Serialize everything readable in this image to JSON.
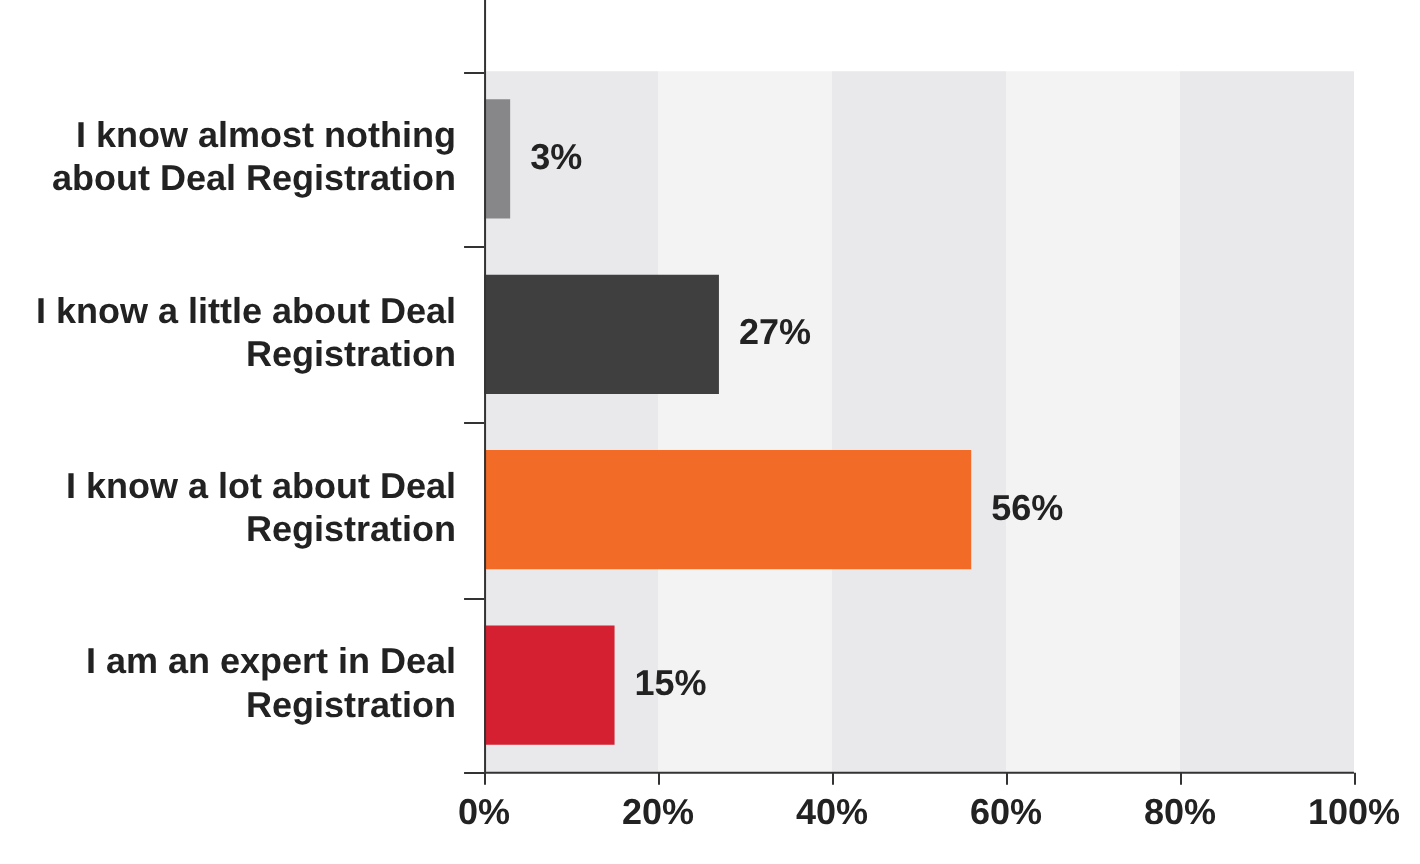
{
  "chart_data": {
    "type": "bar",
    "orientation": "horizontal",
    "categories": [
      "I know almost nothing about Deal Registration",
      "I know a little about Deal Registration",
      "I know a lot about Deal Registration",
      "I am an expert in Deal Registration"
    ],
    "values": [
      3,
      27,
      56,
      15
    ],
    "colors": [
      "#87878a",
      "#3f3f3f",
      "#f26b27",
      "#d42030"
    ],
    "value_labels": [
      "3%",
      "27%",
      "56%",
      "15%"
    ],
    "xlim": [
      0,
      100
    ],
    "xticks": [
      {
        "value": 0,
        "label": "0%"
      },
      {
        "value": 20,
        "label": "20%"
      },
      {
        "value": 40,
        "label": "40%"
      },
      {
        "value": 60,
        "label": "60%"
      },
      {
        "value": 80,
        "label": "80%"
      },
      {
        "value": 100,
        "label": "100%"
      }
    ],
    "bands": [
      {
        "axis": "x",
        "from": 0,
        "to": 20,
        "color": "#e9e9eb"
      },
      {
        "axis": "x",
        "from": 20,
        "to": 40,
        "color": "#f3f3f4"
      },
      {
        "axis": "x",
        "from": 40,
        "to": 60,
        "color": "#e9e9eb"
      },
      {
        "axis": "x",
        "from": 60,
        "to": 80,
        "color": "#f3f3f4"
      },
      {
        "axis": "x",
        "from": 80,
        "to": 100,
        "color": "#e9e9eb"
      }
    ],
    "grid": false,
    "legend": false
  }
}
